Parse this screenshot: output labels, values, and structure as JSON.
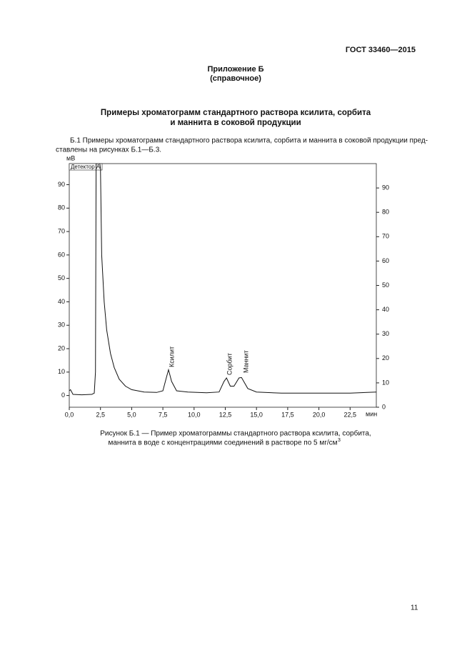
{
  "header": {
    "code": "ГОСТ 33460—2015"
  },
  "appendix": {
    "title": "Приложение Б",
    "kind": "(справочное)"
  },
  "heading": [
    "Примеры хроматограмм стандартного раствора ксилита, сорбита",
    "и маннита в соковой продукции"
  ],
  "paragraph": [
    "Б.1 Примеры хроматограмм стандартного раствора ксилита, сорбита и маннита в соковой продукции пред-",
    "ставлены на рисунках Б.1—Б.3."
  ],
  "chart_data": {
    "type": "line",
    "detector": "Детектор A",
    "ylabel": "мВ",
    "xlabel": "мин",
    "x": [
      0,
      0.1,
      0.3,
      1.0,
      1.8,
      2.0,
      2.1,
      2.15,
      2.45,
      2.5,
      2.6,
      2.8,
      3.0,
      3.3,
      3.6,
      4.0,
      4.5,
      5.0,
      6.0,
      7.0,
      7.5,
      7.8,
      7.95,
      8.2,
      8.6,
      9.5,
      11.0,
      12.0,
      12.4,
      12.6,
      12.9,
      13.2,
      13.6,
      13.8,
      14.3,
      15.0,
      17.0,
      20.0,
      22.5,
      24.6
    ],
    "series": [
      {
        "color": "#111111",
        "values": [
          2,
          2.5,
          0.5,
          0.3,
          0.5,
          1,
          10,
          99,
          99,
          97,
          60,
          40,
          28,
          18,
          12,
          7,
          4,
          2.5,
          1.5,
          1.3,
          2,
          8,
          11,
          6,
          2,
          1.5,
          1.2,
          1.5,
          6,
          7.5,
          4,
          4,
          7.5,
          7.7,
          3,
          1.5,
          1,
          1,
          1,
          1.5
        ]
      }
    ],
    "xlim": [
      0,
      24.6
    ],
    "xticks": [
      {
        "value": 0,
        "label": "0,0"
      },
      {
        "value": 2.5,
        "label": "2,5"
      },
      {
        "value": 5,
        "label": "5,0"
      },
      {
        "value": 7.5,
        "label": "7,5"
      },
      {
        "value": 10,
        "label": "10,0"
      },
      {
        "value": 12.5,
        "label": "12,5"
      },
      {
        "value": 15,
        "label": "15,0"
      },
      {
        "value": 17.5,
        "label": "17,5"
      },
      {
        "value": 20,
        "label": "20,0"
      },
      {
        "value": 22.5,
        "label": "22,5"
      }
    ],
    "ylim": [
      -5,
      99
    ],
    "yticks": [
      0,
      10,
      20,
      30,
      40,
      50,
      60,
      70,
      80,
      90
    ],
    "y2lim": [
      0,
      100
    ],
    "y2ticks": [
      0,
      10,
      20,
      30,
      40,
      50,
      60,
      70,
      80,
      90
    ],
    "annotations": [
      "Ксилит",
      "Сорбит",
      "Маннит"
    ]
  },
  "caption": {
    "lines": [
      "Рисунок Б.1 — Пример хроматограммы стандартного раствора ксилита, сорбита,",
      "маннита в воде с концентрациями соединений в растворе по 5 мг/см"
    ],
    "sup": "3"
  },
  "page_number": "11"
}
